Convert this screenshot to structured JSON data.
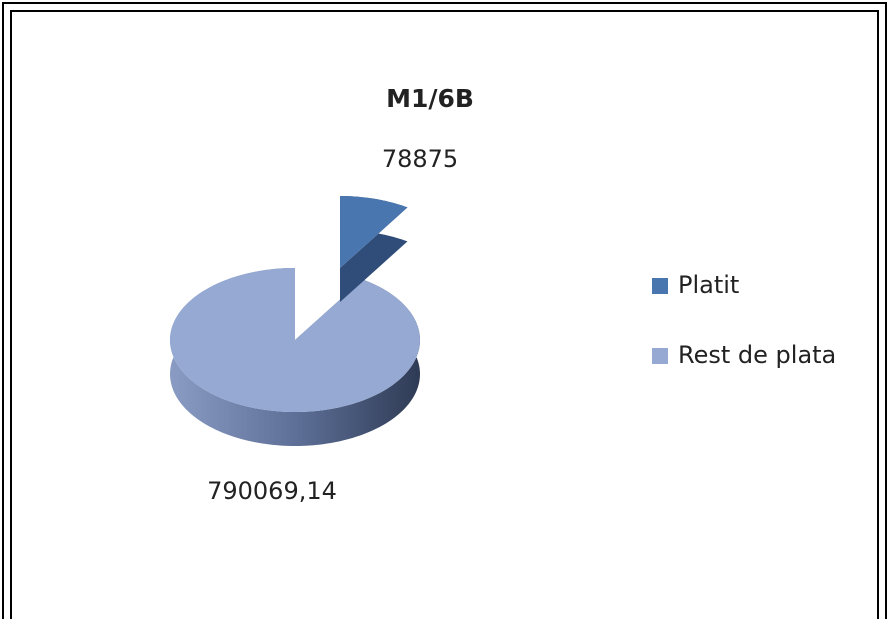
{
  "chart_data": {
    "type": "pie3d",
    "title": "M1/6B",
    "categories": [
      "Platit",
      "Rest de plata"
    ],
    "values": [
      78875,
      790069.14
    ],
    "value_labels": [
      "78875",
      "790069,14"
    ],
    "colors": [
      "#4a76b0",
      "#95a9d3"
    ],
    "legend": "right"
  }
}
